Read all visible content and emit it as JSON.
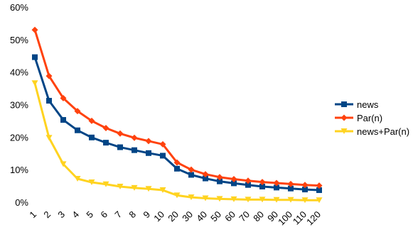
{
  "chart_data": {
    "type": "line",
    "title": "",
    "xlabel": "",
    "ylabel": "",
    "categories": [
      "1",
      "2",
      "3",
      "4",
      "5",
      "6",
      "7",
      "8",
      "9",
      "10",
      "20",
      "30",
      "40",
      "50",
      "60",
      "70",
      "80",
      "90",
      "100",
      "110",
      "120"
    ],
    "ylim": [
      0,
      0.6
    ],
    "ytick_labels": [
      "0%",
      "10%",
      "20%",
      "30%",
      "40%",
      "50%",
      "60%"
    ],
    "grid": false,
    "legend_position": "right",
    "series": [
      {
        "name": "news",
        "color": "#004586",
        "marker": "square",
        "values": [
          0.446,
          0.312,
          0.253,
          0.221,
          0.199,
          0.183,
          0.169,
          0.16,
          0.151,
          0.143,
          0.103,
          0.084,
          0.073,
          0.064,
          0.058,
          0.053,
          0.048,
          0.045,
          0.042,
          0.039,
          0.037
        ]
      },
      {
        "name": "Par(n)",
        "color": "#ff420e",
        "marker": "diamond",
        "values": [
          0.53,
          0.388,
          0.32,
          0.28,
          0.25,
          0.228,
          0.211,
          0.198,
          0.188,
          0.178,
          0.122,
          0.1,
          0.086,
          0.077,
          0.071,
          0.066,
          0.062,
          0.059,
          0.056,
          0.053,
          0.051
        ]
      },
      {
        "name": "news+Par(n)",
        "color": "#ffd320",
        "marker": "triangle-down",
        "values": [
          0.366,
          0.198,
          0.117,
          0.072,
          0.061,
          0.055,
          0.048,
          0.044,
          0.041,
          0.037,
          0.021,
          0.015,
          0.012,
          0.01,
          0.009,
          0.008,
          0.008,
          0.007,
          0.007,
          0.006,
          0.006
        ]
      }
    ]
  }
}
